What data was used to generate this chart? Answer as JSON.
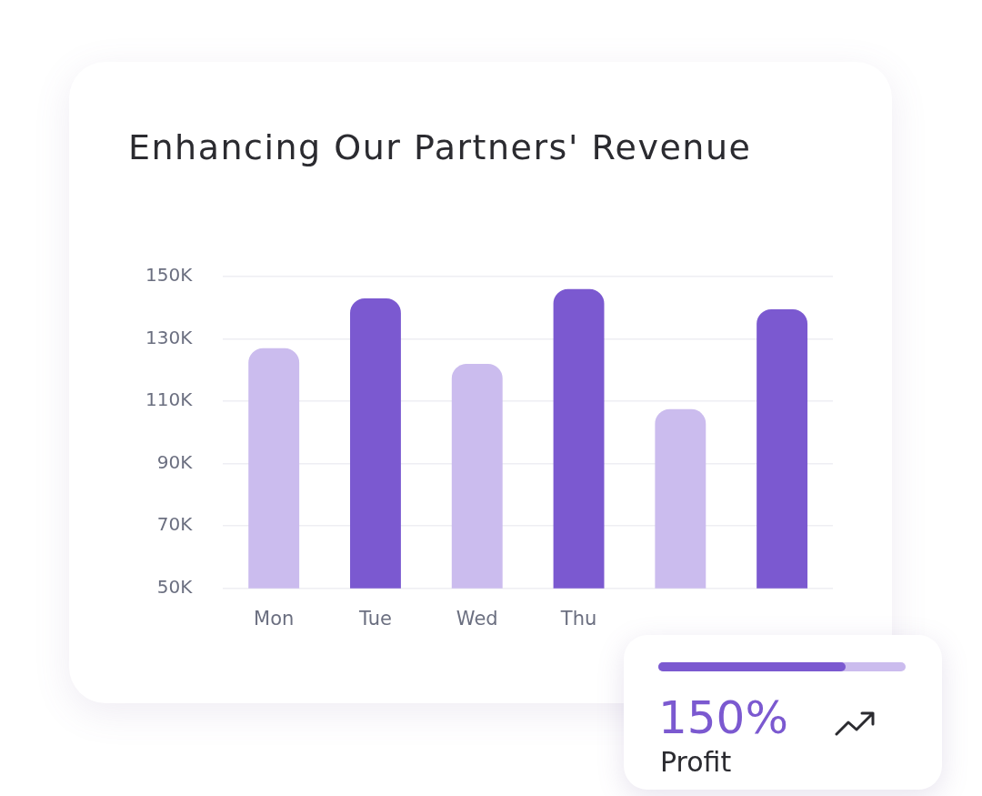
{
  "chart_data": [
    {
      "type": "bar",
      "title": "Enhancing Our Partners' Revenue",
      "categories": [
        "Mon",
        "Tue",
        "Wed",
        "Thu",
        null,
        null
      ],
      "values": [
        127,
        143,
        122,
        146,
        107.5,
        139.5
      ],
      "colors": [
        "#cbbcee",
        "#7b59d0",
        "#cbbcee",
        "#7b59d0",
        "#cbbcee",
        "#7b59d0"
      ],
      "ylim": [
        50,
        150
      ],
      "yticks": [
        {
          "value": 50,
          "label": "50K"
        },
        {
          "value": 70,
          "label": "70K"
        },
        {
          "value": 90,
          "label": "90K"
        },
        {
          "value": 110,
          "label": "110K"
        },
        {
          "value": 130,
          "label": "130K"
        },
        {
          "value": 150,
          "label": "150K"
        }
      ],
      "grid": "y",
      "legend": false
    },
    {
      "type": "other",
      "annotations": [
        "150%",
        "Profit"
      ]
    }
  ]
}
